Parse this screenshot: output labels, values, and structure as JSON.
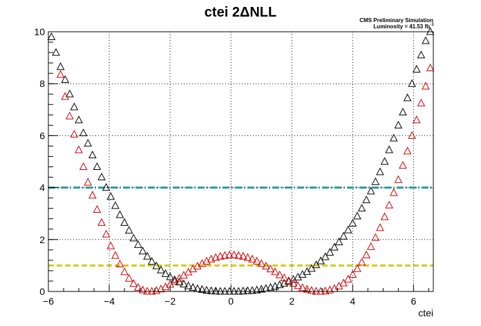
{
  "chart_data": {
    "type": "scatter",
    "title": "ctei 2ΔNLL",
    "annotations": [
      "CMS Preliminary Simulation",
      "Luminosity = 41.53 fb"
    ],
    "annotation_superscript": "-1",
    "xlabel": "ctei",
    "ylabel": "",
    "xlim": [
      -6.0,
      6.65
    ],
    "ylim": [
      0,
      10
    ],
    "xticks": [
      "−6",
      "−4",
      "−2",
      "0",
      "2",
      "4",
      "6"
    ],
    "xtick_values": [
      -6,
      -4,
      -2,
      0,
      2,
      4,
      6
    ],
    "yticks": [
      "0",
      "2",
      "4",
      "6",
      "8",
      "10"
    ],
    "ytick_values": [
      0,
      2,
      4,
      6,
      8,
      10
    ],
    "grid": true,
    "marker": "open-triangle",
    "reference_lines": [
      {
        "y": 4,
        "color": "#2a9c9c",
        "style": "dash-dot"
      },
      {
        "y": 1,
        "color": "#d6c81a",
        "style": "dashed"
      }
    ],
    "series": [
      {
        "color": "#000000",
        "x": [
          -5.9,
          -5.75,
          -5.6,
          -5.45,
          -5.3,
          -5.15,
          -5.0,
          -4.85,
          -4.7,
          -4.55,
          -4.4,
          -4.25,
          -4.1,
          -3.95,
          -3.8,
          -3.65,
          -3.5,
          -3.35,
          -3.2,
          -3.05,
          -2.9,
          -2.75,
          -2.6,
          -2.45,
          -2.3,
          -2.15,
          -2.0,
          -1.85,
          -1.7,
          -1.55,
          -1.4,
          -1.25,
          -1.1,
          -0.95,
          -0.8,
          -0.65,
          -0.5,
          -0.35,
          -0.2,
          -0.05,
          0.1,
          0.25,
          0.4,
          0.55,
          0.7,
          0.85,
          1.0,
          1.15,
          1.3,
          1.45,
          1.6,
          1.75,
          1.9,
          2.05,
          2.2,
          2.35,
          2.5,
          2.65,
          2.8,
          2.95,
          3.1,
          3.25,
          3.4,
          3.55,
          3.7,
          3.85,
          4.0,
          4.15,
          4.3,
          4.45,
          4.6,
          4.75,
          4.9,
          5.05,
          5.2,
          5.35,
          5.5,
          5.65,
          5.8,
          5.95,
          6.1,
          6.25,
          6.4,
          6.55
        ],
        "y": [
          9.8,
          9.2,
          8.65,
          8.15,
          7.6,
          7.1,
          6.6,
          6.1,
          5.7,
          5.25,
          4.8,
          4.4,
          4.0,
          3.65,
          3.3,
          2.95,
          2.65,
          2.35,
          2.05,
          1.8,
          1.55,
          1.35,
          1.15,
          0.98,
          0.82,
          0.68,
          0.56,
          0.45,
          0.36,
          0.28,
          0.21,
          0.15,
          0.1,
          0.07,
          0.04,
          0.02,
          0.01,
          0.0,
          0.0,
          0.0,
          0.0,
          0.0,
          0.01,
          0.02,
          0.03,
          0.05,
          0.08,
          0.11,
          0.15,
          0.19,
          0.25,
          0.31,
          0.38,
          0.46,
          0.55,
          0.65,
          0.76,
          0.88,
          1.02,
          1.17,
          1.33,
          1.5,
          1.7,
          1.9,
          2.12,
          2.36,
          2.62,
          2.9,
          3.2,
          3.52,
          3.86,
          4.22,
          4.6,
          5.0,
          5.45,
          5.9,
          6.4,
          6.9,
          7.45,
          8.0,
          8.55,
          9.1,
          9.65,
          10.0
        ]
      },
      {
        "color": "#cc0000",
        "x": [
          -5.6,
          -5.45,
          -5.3,
          -5.15,
          -5.0,
          -4.85,
          -4.7,
          -4.55,
          -4.4,
          -4.25,
          -4.1,
          -3.95,
          -3.8,
          -3.65,
          -3.5,
          -3.35,
          -3.2,
          -3.05,
          -2.9,
          -2.75,
          -2.6,
          -2.45,
          -2.3,
          -2.15,
          -2.0,
          -1.85,
          -1.7,
          -1.55,
          -1.4,
          -1.25,
          -1.1,
          -0.95,
          -0.8,
          -0.65,
          -0.5,
          -0.35,
          -0.2,
          -0.05,
          0.1,
          0.25,
          0.4,
          0.55,
          0.7,
          0.85,
          1.0,
          1.15,
          1.3,
          1.45,
          1.6,
          1.75,
          1.9,
          2.05,
          2.2,
          2.35,
          2.5,
          2.65,
          2.8,
          2.95,
          3.1,
          3.25,
          3.4,
          3.55,
          3.7,
          3.85,
          4.0,
          4.15,
          4.3,
          4.45,
          4.6,
          4.75,
          4.9,
          5.05,
          5.2,
          5.35,
          5.5,
          5.65,
          5.8,
          5.95,
          6.1,
          6.25,
          6.4,
          6.55
        ],
        "y": [
          8.35,
          7.5,
          6.75,
          6.05,
          5.45,
          4.8,
          4.2,
          3.7,
          3.15,
          2.65,
          2.2,
          1.75,
          1.38,
          1.05,
          0.75,
          0.5,
          0.3,
          0.15,
          0.05,
          0.0,
          0.0,
          0.03,
          0.09,
          0.17,
          0.27,
          0.38,
          0.5,
          0.62,
          0.74,
          0.86,
          0.97,
          1.07,
          1.16,
          1.24,
          1.3,
          1.35,
          1.38,
          1.4,
          1.4,
          1.38,
          1.35,
          1.3,
          1.24,
          1.16,
          1.07,
          0.97,
          0.86,
          0.75,
          0.63,
          0.52,
          0.41,
          0.31,
          0.22,
          0.14,
          0.08,
          0.03,
          0.0,
          0.0,
          0.01,
          0.05,
          0.11,
          0.2,
          0.32,
          0.47,
          0.65,
          0.87,
          1.12,
          1.4,
          1.72,
          2.07,
          2.45,
          2.87,
          3.32,
          3.8,
          4.3,
          4.85,
          5.4,
          6.0,
          6.6,
          7.25,
          7.9,
          8.6
        ]
      }
    ]
  }
}
